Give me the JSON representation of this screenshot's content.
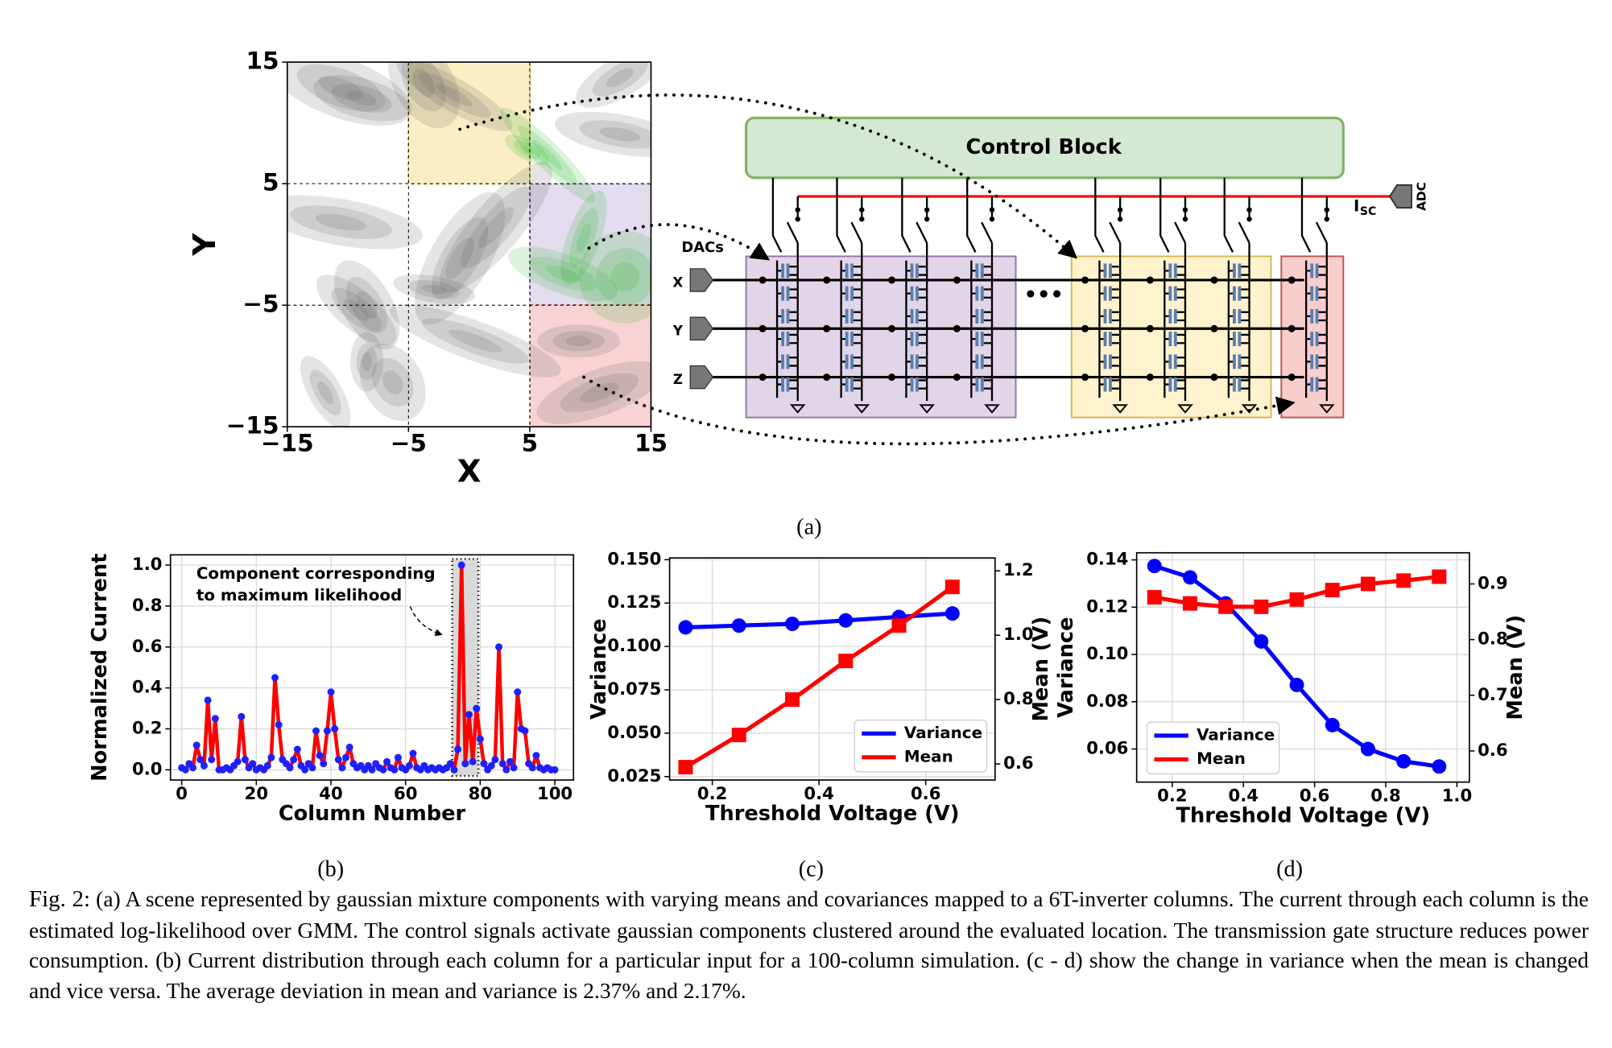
{
  "panel_labels": [
    "(a)",
    "(b)",
    "(c)",
    "(d)"
  ],
  "diagram": {
    "title": "Control Block",
    "dac_label": "DACs",
    "inputs": [
      "X",
      "Y",
      "Z"
    ],
    "adc_label": "ADC",
    "current_label": "I",
    "current_subscript": "SC",
    "ellipsis": "•••"
  },
  "caption": {
    "label": "Fig. 2:",
    "text": "(a) A scene represented by gaussian mixture components with varying means and covariances mapped to a 6T-inverter columns. The current through each column is the estimated log-likelihood over GMM. The control signals activate gaussian components clustered around the evaluated location. The transmission gate structure reduces power consumption. (b) Current distribution through each column for a particular input for a 100-column simulation. (c - d) show the change in variance when the mean is changed and vice versa. The average deviation in mean and variance is 2.37% and 2.17%."
  },
  "chart_data": [
    {
      "type": "density",
      "xlabel": "X",
      "ylabel": "Y",
      "xlim": [
        -15,
        15
      ],
      "ylim": [
        -15,
        15
      ],
      "xticks": [
        {
          "value": -15,
          "label": "−15"
        },
        {
          "value": -5,
          "label": "−5"
        },
        5,
        15
      ],
      "yticks": [
        {
          "value": -15,
          "label": "−15"
        },
        {
          "value": -5,
          "label": "−5"
        },
        5,
        15
      ],
      "grid": true
    },
    {
      "type": "line",
      "xlabel": "Column Number",
      "ylabel": "Normalized Current",
      "annotation": [
        "Component corresponding",
        "to maximum likelihood"
      ],
      "color": "#ff0000",
      "marker_color": "#1f1fff",
      "x": [
        0,
        1,
        2,
        3,
        4,
        5,
        6,
        7,
        8,
        9,
        10,
        11,
        12,
        13,
        14,
        15,
        16,
        17,
        18,
        19,
        20,
        21,
        22,
        23,
        24,
        25,
        26,
        27,
        28,
        29,
        30,
        31,
        32,
        33,
        34,
        35,
        36,
        37,
        38,
        39,
        40,
        41,
        42,
        43,
        44,
        45,
        46,
        47,
        48,
        49,
        50,
        51,
        52,
        53,
        54,
        55,
        56,
        57,
        58,
        59,
        60,
        61,
        62,
        63,
        64,
        65,
        66,
        67,
        68,
        69,
        70,
        71,
        72,
        73,
        74,
        75,
        76,
        77,
        78,
        79,
        80,
        81,
        82,
        83,
        84,
        85,
        86,
        87,
        88,
        89,
        90,
        91,
        92,
        93,
        94,
        95,
        96,
        97,
        98,
        99,
        100
      ],
      "values": [
        0.01,
        0.0,
        0.03,
        0.01,
        0.12,
        0.05,
        0.02,
        0.34,
        0.05,
        0.25,
        0.0,
        0.0,
        0.01,
        0.0,
        0.02,
        0.04,
        0.26,
        0.05,
        0.01,
        0.03,
        0.0,
        0.01,
        0.0,
        0.02,
        0.06,
        0.45,
        0.22,
        0.05,
        0.03,
        0.01,
        0.05,
        0.1,
        0.02,
        0.0,
        0.03,
        0.01,
        0.19,
        0.07,
        0.03,
        0.19,
        0.38,
        0.2,
        0.05,
        0.01,
        0.06,
        0.11,
        0.03,
        0.01,
        0.02,
        0.0,
        0.02,
        0.0,
        0.03,
        0.01,
        0.0,
        0.04,
        0.01,
        0.0,
        0.06,
        0.01,
        0.0,
        0.02,
        0.08,
        0.01,
        0.0,
        0.02,
        0.0,
        0.01,
        0.0,
        0.01,
        0.0,
        0.01,
        0.03,
        0.0,
        0.1,
        1.0,
        0.03,
        0.27,
        0.04,
        0.3,
        0.15,
        0.03,
        0.0,
        0.02,
        0.05,
        0.6,
        0.03,
        0.0,
        0.04,
        0.01,
        0.38,
        0.2,
        0.19,
        0.03,
        0.01,
        0.07,
        0.01,
        0.0,
        0.01,
        0.0,
        0.0
      ],
      "xlim": [
        -3,
        105
      ],
      "ylim": [
        -0.05,
        1.05
      ],
      "xticks": [
        0,
        20,
        40,
        60,
        80,
        100
      ],
      "yticks": [
        {
          "value": 0,
          "label": "0.0"
        },
        0.2,
        0.4,
        0.6,
        0.8,
        {
          "value": 1,
          "label": "1.0"
        }
      ],
      "grid": true
    },
    {
      "type": "line",
      "xlabel": "Threshold Voltage (V)",
      "ylabel": "Variance",
      "y2label": "Mean (V)",
      "x": [
        0.15,
        0.25,
        0.35,
        0.45,
        0.55,
        0.65
      ],
      "series": [
        {
          "name": "Variance",
          "color": "#0000ff",
          "marker": "circle",
          "values": [
            0.111,
            0.112,
            0.113,
            0.115,
            0.117,
            0.119
          ]
        },
        {
          "name": "Mean",
          "color": "#ff0000",
          "marker": "square",
          "axis": "y2",
          "values": [
            0.59,
            0.69,
            0.8,
            0.92,
            1.03,
            1.15
          ]
        }
      ],
      "xlim": [
        0.12,
        0.73
      ],
      "ylim": [
        0.023,
        0.151
      ],
      "y2lim": [
        0.55,
        1.24
      ],
      "xticks": [
        0.2,
        0.4,
        0.6
      ],
      "yticks": [
        0.025,
        {
          "value": 0.05,
          "label": "0.050"
        },
        0.075,
        {
          "value": 0.1,
          "label": "0.100"
        },
        0.125,
        {
          "value": 0.15,
          "label": "0.150"
        }
      ],
      "y2ticks": [
        0.6,
        0.8,
        {
          "value": 1,
          "label": "1.0"
        },
        1.2
      ],
      "grid": true,
      "legend": "lower right"
    },
    {
      "type": "line",
      "xlabel": "Threshold Voltage (V)",
      "ylabel": "Variance",
      "y2label": "Mean (V)",
      "x": [
        0.15,
        0.25,
        0.35,
        0.45,
        0.55,
        0.65,
        0.75,
        0.85,
        0.95
      ],
      "series": [
        {
          "name": "Variance",
          "color": "#0000ff",
          "marker": "circle",
          "values": [
            0.1374,
            0.1326,
            0.1216,
            0.1055,
            0.0871,
            0.0701,
            0.06,
            0.0548,
            0.0526
          ]
        },
        {
          "name": "Mean",
          "color": "#ff0000",
          "marker": "square",
          "axis": "y2",
          "values": [
            0.876,
            0.865,
            0.859,
            0.859,
            0.872,
            0.889,
            0.9,
            0.906,
            0.913
          ]
        }
      ],
      "xlim": [
        0.1,
        1.035
      ],
      "ylim": [
        0.046,
        0.143
      ],
      "y2lim": [
        0.544,
        0.956
      ],
      "xticks": [
        0.2,
        0.4,
        0.6,
        0.8,
        {
          "value": 1,
          "label": "1.0"
        }
      ],
      "yticks": [
        0.06,
        0.08,
        {
          "value": 0.1,
          "label": "0.10"
        },
        0.12,
        0.14
      ],
      "y2ticks": [
        0.6,
        0.7,
        0.8,
        0.9
      ],
      "grid": true,
      "legend": "lower left"
    }
  ]
}
